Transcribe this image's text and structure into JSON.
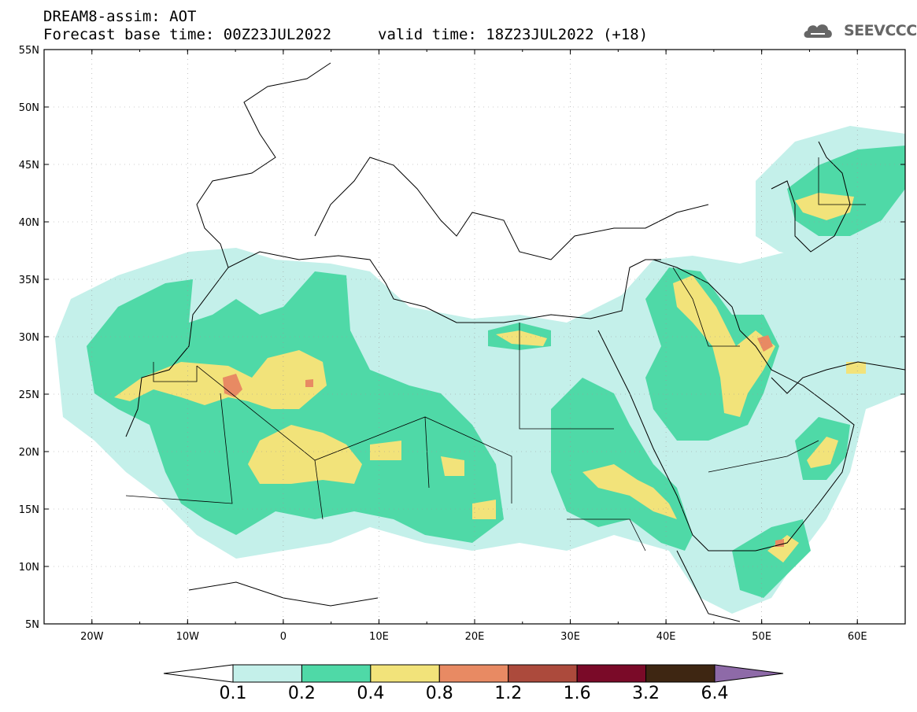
{
  "header": {
    "line1": "DREAM8-assim: AOT",
    "line2": "Forecast base time: 00Z23JUL2022",
    "line3": "valid time: 18Z23JUL2022 (+18)",
    "logo_text": "SEEVCCC",
    "logo_icon": "cloud-icon"
  },
  "map": {
    "projection": "lat-lon",
    "lon_range": [
      -25,
      65
    ],
    "lat_range": [
      5,
      55
    ],
    "lat_ticks": [
      "55N",
      "50N",
      "45N",
      "40N",
      "35N",
      "30N",
      "25N",
      "20N",
      "15N",
      "10N",
      "5N"
    ],
    "lon_ticks": [
      "20W",
      "10W",
      "0",
      "10E",
      "20E",
      "30E",
      "40E",
      "50E",
      "60E"
    ]
  },
  "colorbar": {
    "labels": [
      "0.1",
      "0.2",
      "0.4",
      "0.8",
      "1.2",
      "1.6",
      "3.2",
      "6.4"
    ],
    "colors": [
      "#c4f0ea",
      "#4fd9a7",
      "#f2e37a",
      "#e88a63",
      "#ac4a3c",
      "#7a0a28",
      "#3e2612",
      "#8e6aa8"
    ]
  }
}
